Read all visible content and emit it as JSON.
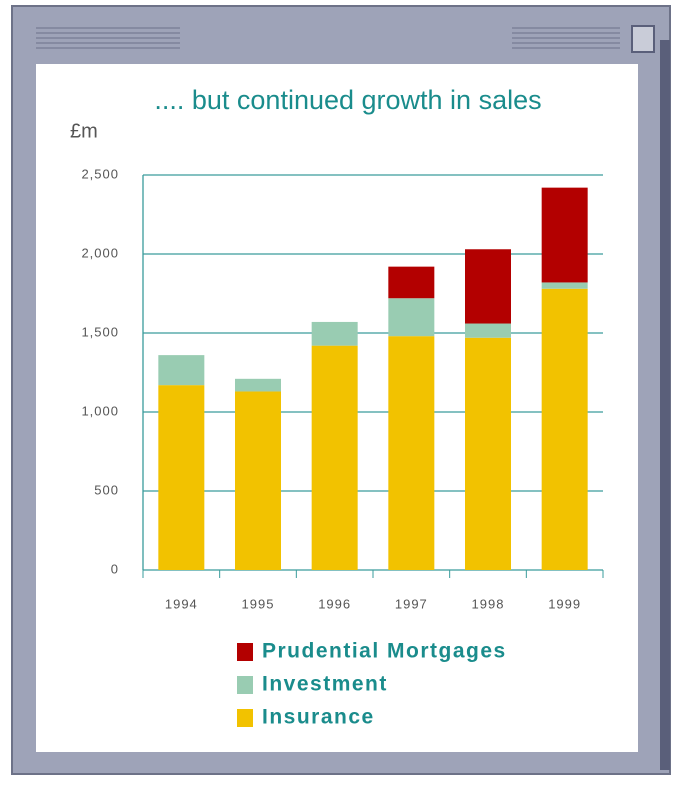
{
  "chart_data": {
    "type": "bar",
    "stacked": true,
    "title": ".... but continued growth in sales",
    "y_label": "£m",
    "categories": [
      "1994",
      "1995",
      "1996",
      "1997",
      "1998",
      "1999"
    ],
    "series": [
      {
        "name": "Insurance",
        "color": "#f2c200",
        "values": [
          1170,
          1130,
          1420,
          1480,
          1470,
          1780
        ]
      },
      {
        "name": "Investment",
        "color": "#99ccb2",
        "values": [
          190,
          80,
          150,
          240,
          90,
          40
        ]
      },
      {
        "name": "Prudential Mortgages",
        "color": "#b30000",
        "values": [
          0,
          0,
          0,
          200,
          470,
          600
        ]
      }
    ],
    "ylim": [
      0,
      2500
    ],
    "yticks": [
      0,
      500,
      {
        "value": 1000,
        "label": "1,000"
      },
      {
        "value": 1500,
        "label": "1,500"
      },
      {
        "value": 2000,
        "label": "2,000"
      },
      {
        "value": 2500,
        "label": "2,500"
      }
    ],
    "grid": true
  }
}
